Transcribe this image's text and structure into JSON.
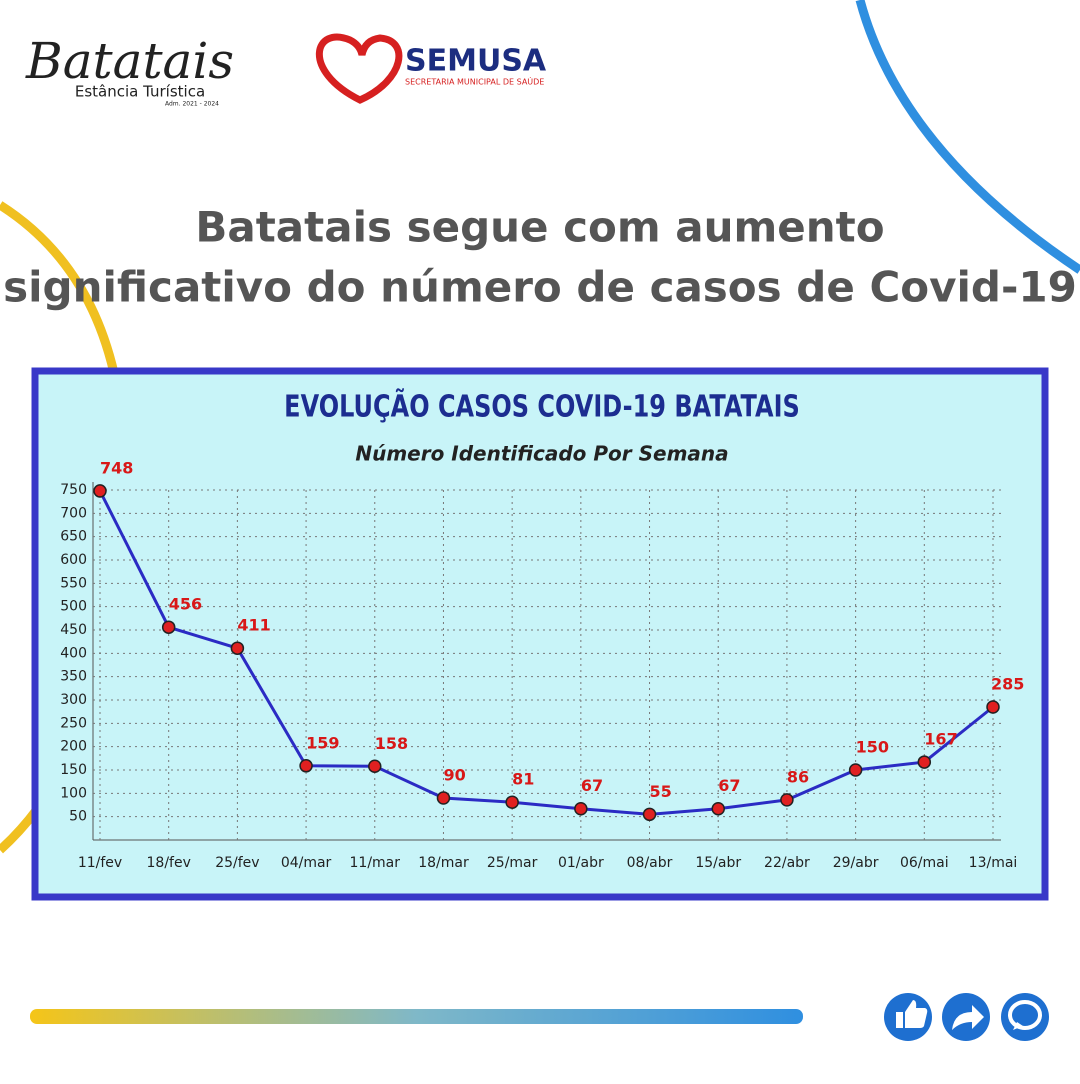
{
  "header": {
    "brand": "Batatais",
    "brand_sub": "Estância Turística",
    "brand_term": "Adm. 2021 - 2024",
    "org": "SEMUSA",
    "org_sub": "SECRETARIA MUNICIPAL DE SAÚDE"
  },
  "headline": [
    "Batatais segue com aumento",
    "significativo do número de casos de Covid-19"
  ],
  "chart_data": {
    "type": "line",
    "title": "EVOLUÇÃO CASOS COVID-19 BATATAIS",
    "subtitle": "Número Identificado Por Semana",
    "categories": [
      "11/fev",
      "18/fev",
      "25/fev",
      "04/mar",
      "11/mar",
      "18/mar",
      "25/mar",
      "01/abr",
      "08/abr",
      "15/abr",
      "22/abr",
      "29/abr",
      "06/mai",
      "13/mai"
    ],
    "values": [
      748,
      456,
      411,
      159,
      158,
      90,
      81,
      67,
      55,
      67,
      86,
      150,
      167,
      285
    ],
    "color": "#2b2bc4",
    "marker_color": "#e02020",
    "ylim": [
      0,
      750
    ],
    "yticks": [
      50,
      100,
      150,
      200,
      250,
      300,
      350,
      400,
      450,
      500,
      550,
      600,
      650,
      700,
      750
    ],
    "grid": true
  }
}
